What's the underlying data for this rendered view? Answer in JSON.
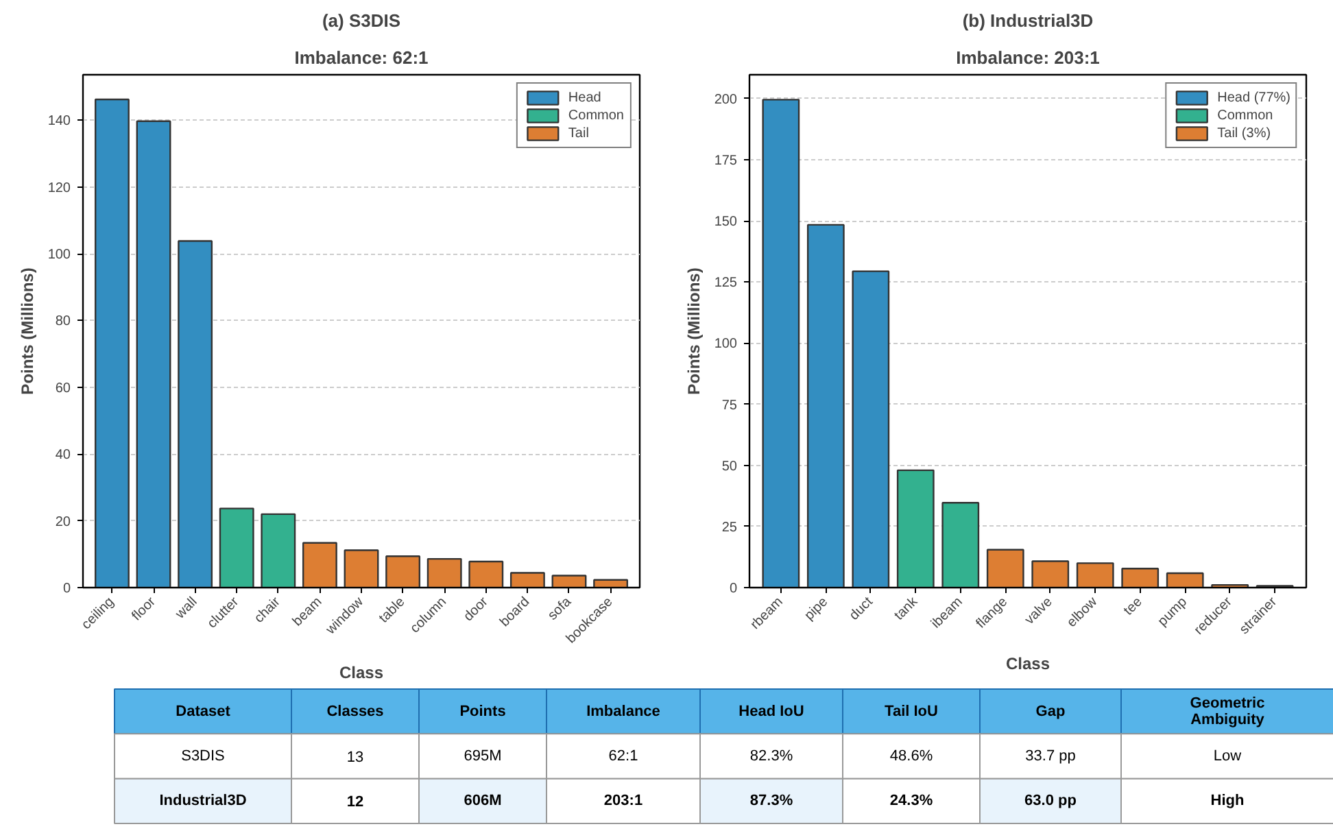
{
  "chart_data": [
    {
      "type": "bar",
      "title": "(a) S3DIS",
      "subtitle": "Imbalance: 62:1",
      "xlabel": "Class",
      "ylabel": "Points (Millions)",
      "categories": [
        "ceiling",
        "floor",
        "wall",
        "clutter",
        "chair",
        "beam",
        "window",
        "table",
        "column",
        "door",
        "board",
        "sofa",
        "bookcase"
      ],
      "series": [
        {
          "name": "Head",
          "color": "#338ec1",
          "values": [
            146.2,
            139.7,
            103.8,
            null,
            null,
            null,
            null,
            null,
            null,
            null,
            null,
            null,
            null
          ]
        },
        {
          "name": "Common",
          "color": "#33b18f",
          "values": [
            null,
            null,
            null,
            23.7,
            22.0,
            null,
            null,
            null,
            null,
            null,
            null,
            null,
            null
          ]
        },
        {
          "name": "Tail",
          "color": "#dd7e33",
          "values": [
            null,
            null,
            null,
            null,
            null,
            13.4,
            11.2,
            9.4,
            8.6,
            7.8,
            4.4,
            3.6,
            2.3
          ]
        }
      ],
      "ylim": [
        0,
        153.6
      ],
      "yticks": [
        0,
        20,
        40,
        60,
        80,
        100,
        120,
        140
      ],
      "grid": "y",
      "legend": "top right"
    },
    {
      "type": "bar",
      "title": "(b) Industrial3D",
      "subtitle": "Imbalance: 203:1",
      "xlabel": "Class",
      "ylabel": "Points (Millions)",
      "categories": [
        "rbeam",
        "pipe",
        "duct",
        "tank",
        "ibeam",
        "flange",
        "valve",
        "elbow",
        "tee",
        "pump",
        "reducer",
        "strainer"
      ],
      "series": [
        {
          "name": "Head (77%)",
          "color": "#338ec1",
          "values": [
            199.6,
            148.4,
            129.4,
            null,
            null,
            null,
            null,
            null,
            null,
            null,
            null,
            null
          ]
        },
        {
          "name": "Common",
          "color": "#33b18f",
          "values": [
            null,
            null,
            null,
            48.0,
            34.7,
            null,
            null,
            null,
            null,
            null,
            null,
            null
          ]
        },
        {
          "name": "Tail (3%)",
          "color": "#dd7e33",
          "values": [
            null,
            null,
            null,
            null,
            null,
            15.5,
            10.8,
            10.0,
            7.8,
            5.9,
            1.1,
            0.7
          ]
        }
      ],
      "ylim": [
        0,
        209.8
      ],
      "yticks": [
        0,
        25,
        50,
        75,
        100,
        125,
        150,
        175,
        200
      ],
      "grid": "y",
      "legend": "top right"
    },
    {
      "type": "other",
      "categories": [
        "Dataset",
        "Classes",
        "Points",
        "Imbalance",
        "Head IoU",
        "Tail IoU",
        "Gap",
        "Geometric Ambiguity"
      ],
      "annotations": [
        "S3DIS",
        "13",
        "695M",
        "62:1",
        "82.3%",
        "48.6%",
        "33.7 pp",
        "Low",
        "Industrial3D",
        "12",
        "606M",
        "203:1",
        "87.3%",
        "24.3%",
        "63.0 pp",
        "High"
      ]
    }
  ]
}
